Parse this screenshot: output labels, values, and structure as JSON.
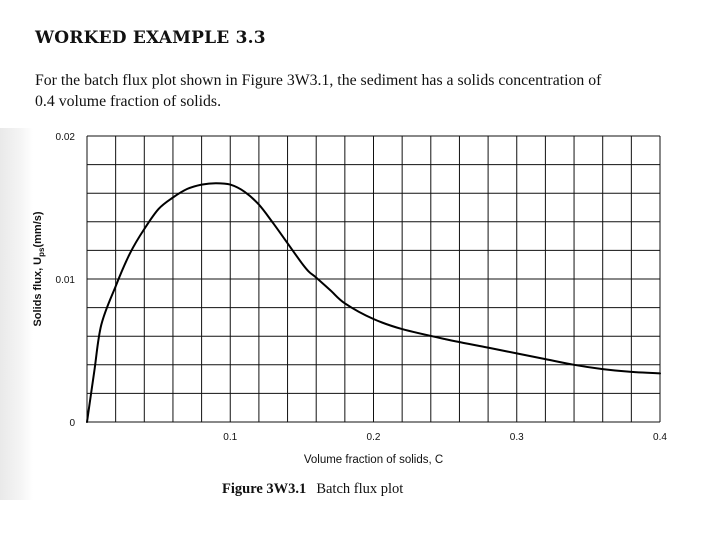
{
  "document": {
    "heading": "WORKED EXAMPLE 3.3",
    "paragraph_lines": [
      "For the batch flux plot shown in Figure 3W3.1, the sediment has a solids concentration of",
      "0.4 volume fraction of solids."
    ],
    "caption": {
      "label": "Figure 3W3.1",
      "text": "Batch flux plot"
    }
  },
  "chart_data": {
    "type": "line",
    "xlabel": "Volume fraction of solids, C",
    "ylabel": "Solids flux, U",
    "ylabel_subscript": "ps",
    "ylabel_units": "(mm/s)",
    "xlim": [
      0,
      0.4
    ],
    "ylim": [
      0,
      0.02
    ],
    "x_ticks": [
      {
        "value": 0.1,
        "label": "0.1"
      },
      {
        "value": 0.2,
        "label": "0.2"
      },
      {
        "value": 0.3,
        "label": "0.3"
      },
      {
        "value": 0.4,
        "label": "0.4"
      }
    ],
    "y_ticks": [
      {
        "value": 0,
        "label": "0"
      },
      {
        "value": 0.01,
        "label": "0.01"
      },
      {
        "value": 0.02,
        "label": "0.02"
      }
    ],
    "grid": true,
    "grid_x_step": 0.02,
    "grid_y_step": 0.002,
    "line_color": "#000000",
    "series": [
      {
        "x": [
          0,
          0.005,
          0.01,
          0.02,
          0.03,
          0.04,
          0.05,
          0.06,
          0.07,
          0.08,
          0.09,
          0.1,
          0.11,
          0.12,
          0.13,
          0.14,
          0.15,
          0.155,
          0.16,
          0.17,
          0.18,
          0.2,
          0.22,
          0.25,
          0.28,
          0.3,
          0.32,
          0.34,
          0.36,
          0.38,
          0.4
        ],
        "y": [
          0,
          0.0035,
          0.0068,
          0.0095,
          0.0118,
          0.0135,
          0.0149,
          0.0157,
          0.0163,
          0.0166,
          0.0167,
          0.0166,
          0.0161,
          0.0152,
          0.0139,
          0.0125,
          0.0111,
          0.0105,
          0.0101,
          0.0092,
          0.0083,
          0.0072,
          0.0065,
          0.0058,
          0.0052,
          0.0048,
          0.0044,
          0.004,
          0.0037,
          0.0035,
          0.0034
        ]
      }
    ]
  }
}
